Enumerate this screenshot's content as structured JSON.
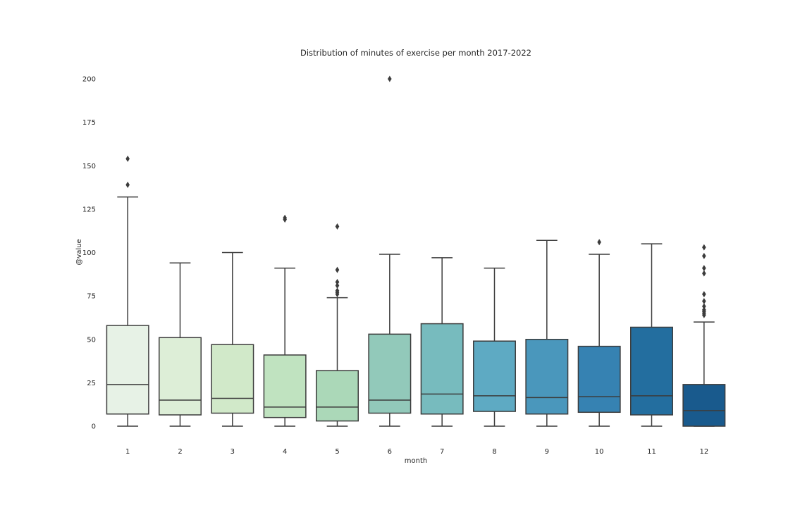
{
  "chart_data": {
    "type": "box",
    "title": "Distribution of minutes of exercise per month 2017-2022",
    "xlabel": "month",
    "ylabel": "@value",
    "ylim": [
      -8,
      210
    ],
    "yticks": [
      0,
      25,
      50,
      75,
      100,
      125,
      150,
      175,
      200
    ],
    "grid": false,
    "legend": "none",
    "boxes": [
      {
        "category": "1",
        "min": 0,
        "q1": 7,
        "median": 24,
        "q3": 58,
        "max": 132,
        "outliers": [
          139,
          154
        ],
        "color": "#e7f2e6"
      },
      {
        "category": "2",
        "min": 0,
        "q1": 6.5,
        "median": 15,
        "q3": 51,
        "max": 94,
        "outliers": [],
        "color": "#ddeed7"
      },
      {
        "category": "3",
        "min": 0,
        "q1": 7.5,
        "median": 16,
        "q3": 47,
        "max": 100,
        "outliers": [],
        "color": "#d1e9c9"
      },
      {
        "category": "4",
        "min": 0,
        "q1": 5,
        "median": 11,
        "q3": 41,
        "max": 91,
        "outliers": [
          119,
          120
        ],
        "color": "#c0e3c0"
      },
      {
        "category": "5",
        "min": 0,
        "q1": 3,
        "median": 11,
        "q3": 32,
        "max": 74,
        "outliers": [
          76,
          77,
          78,
          81,
          83,
          90,
          115
        ],
        "color": "#abd8b8"
      },
      {
        "category": "6",
        "min": 0,
        "q1": 7.5,
        "median": 15,
        "q3": 53,
        "max": 99,
        "outliers": [
          200
        ],
        "color": "#92c9ba"
      },
      {
        "category": "7",
        "min": 0,
        "q1": 7,
        "median": 18.5,
        "q3": 59,
        "max": 97,
        "outliers": [],
        "color": "#77bbbe"
      },
      {
        "category": "8",
        "min": 0,
        "q1": 8.5,
        "median": 17.5,
        "q3": 49,
        "max": 91,
        "outliers": [],
        "color": "#5eaac3"
      },
      {
        "category": "9",
        "min": 0,
        "q1": 7,
        "median": 16.5,
        "q3": 50,
        "max": 107,
        "outliers": [],
        "color": "#4a97bc"
      },
      {
        "category": "10",
        "min": 0,
        "q1": 8,
        "median": 17,
        "q3": 46,
        "max": 99,
        "outliers": [
          106
        ],
        "color": "#3682b2"
      },
      {
        "category": "11",
        "min": 0,
        "q1": 6.5,
        "median": 17.5,
        "q3": 57,
        "max": 105,
        "outliers": [],
        "color": "#236e9f"
      },
      {
        "category": "12",
        "min": 0,
        "q1": 0,
        "median": 9,
        "q3": 24,
        "max": 60,
        "outliers": [
          64,
          65,
          66,
          67,
          69,
          72,
          76,
          88,
          91,
          98,
          103
        ],
        "color": "#195a8d"
      }
    ]
  }
}
